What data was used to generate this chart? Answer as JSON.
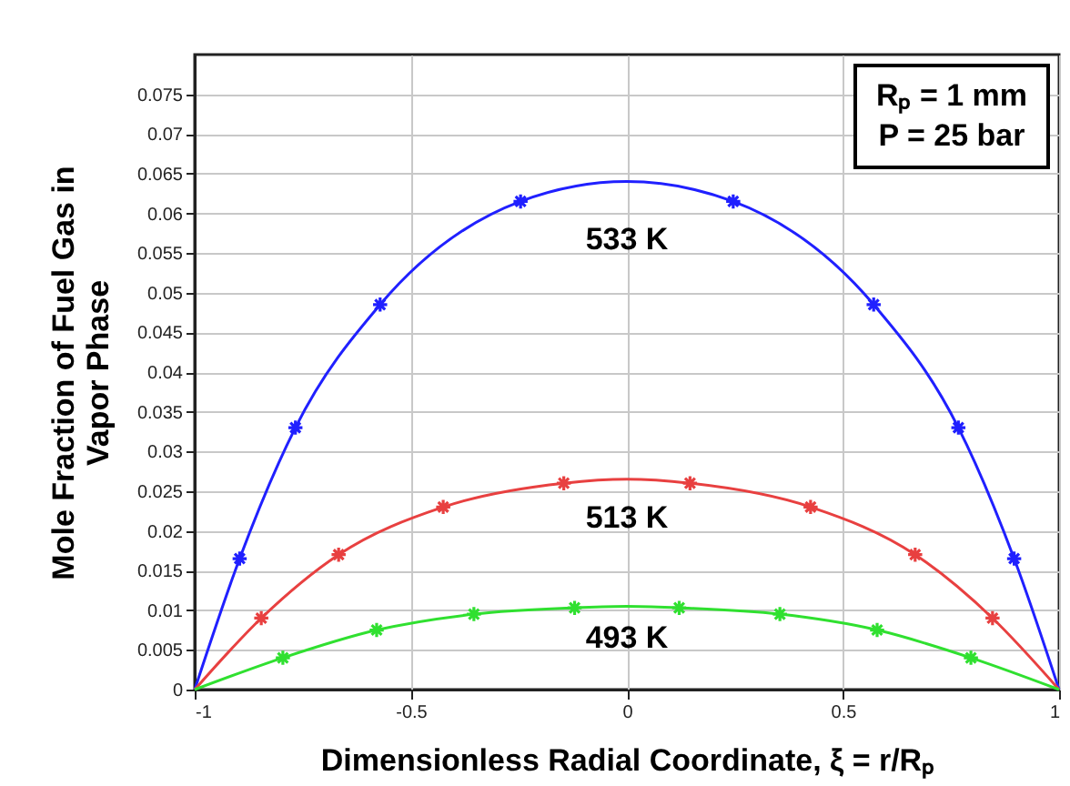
{
  "chart_data": {
    "type": "line",
    "xlabel": "Dimensionless  Radial Coordinate, ξ = r/Rₚ",
    "ylabel": "Mole Fraction of Fuel Gas in\nVapor Phase",
    "xlim": [
      -1,
      1
    ],
    "xticks": [
      -1,
      -0.5,
      0,
      0.5,
      1
    ],
    "ylim": [
      0,
      0.08
    ],
    "yticks": [
      0,
      0.005,
      0.01,
      0.015,
      0.02,
      0.025,
      0.03,
      0.035,
      0.04,
      0.045,
      0.05,
      0.055,
      0.06,
      0.065,
      0.07,
      0.075
    ],
    "grid": true,
    "series": [
      {
        "type": "line",
        "color": "#2020ff",
        "marker": "none",
        "x": [
          -1,
          -0.896,
          -0.767,
          -0.571,
          -0.246,
          0,
          0.246,
          0.571,
          0.767,
          0.896,
          1
        ],
        "values": [
          0,
          0.0165,
          0.033,
          0.0485,
          0.0615,
          0.064,
          0.0615,
          0.0485,
          0.033,
          0.0165,
          0
        ]
      },
      {
        "type": "line",
        "color": "#e84040",
        "marker": "none",
        "x": [
          -1,
          -0.846,
          -0.667,
          -0.425,
          -0.146,
          0,
          0.146,
          0.425,
          0.667,
          0.846,
          1
        ],
        "values": [
          0,
          0.009,
          0.017,
          0.023,
          0.026,
          0.0265,
          0.026,
          0.023,
          0.017,
          0.009,
          0
        ]
      },
      {
        "type": "line",
        "color": "#30e030",
        "marker": "none",
        "x": [
          -1,
          -0.796,
          -0.579,
          -0.354,
          -0.121,
          0,
          0.121,
          0.354,
          0.579,
          0.796,
          1
        ],
        "values": [
          0,
          0.004,
          0.0075,
          0.0095,
          0.0103,
          0.0105,
          0.0103,
          0.0095,
          0.0075,
          0.004,
          0
        ]
      },
      {
        "type": "scatter",
        "color": "#2020ff",
        "marker": "cross",
        "x": [
          -0.896,
          -0.767,
          -0.571,
          -0.246,
          0.246,
          0.571,
          0.767,
          0.896
        ],
        "values": [
          0.0165,
          0.033,
          0.0485,
          0.0615,
          0.0615,
          0.0485,
          0.033,
          0.0165
        ]
      },
      {
        "type": "scatter",
        "color": "#e84040",
        "marker": "cross",
        "x": [
          -0.846,
          -0.667,
          -0.425,
          -0.146,
          0.146,
          0.425,
          0.667,
          0.846
        ],
        "values": [
          0.009,
          0.017,
          0.023,
          0.026,
          0.026,
          0.023,
          0.017,
          0.009
        ]
      },
      {
        "type": "scatter",
        "color": "#30e030",
        "marker": "cross",
        "x": [
          -0.796,
          -0.579,
          -0.354,
          -0.121,
          0.121,
          0.354,
          0.579,
          0.796
        ],
        "values": [
          0.004,
          0.0075,
          0.0095,
          0.0103,
          0.0103,
          0.0095,
          0.0075,
          0.004
        ]
      }
    ],
    "annotations": [
      "533 K",
      "513 K",
      "493 K",
      "Rₚ = 1 mm",
      "P = 25 bar"
    ]
  }
}
